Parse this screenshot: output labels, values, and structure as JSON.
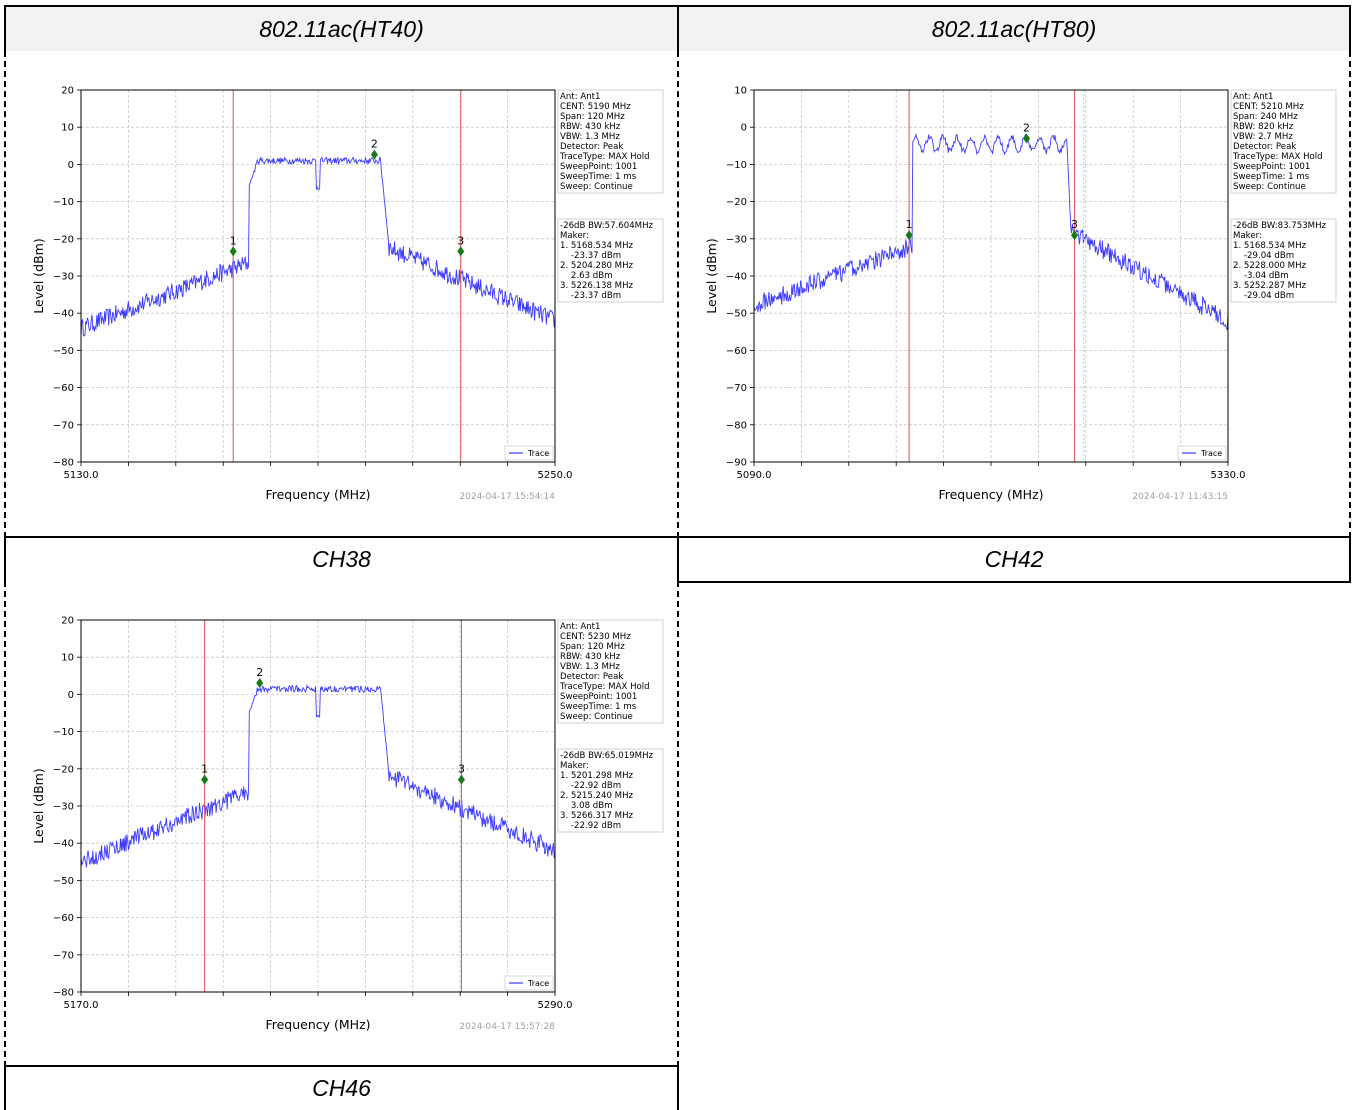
{
  "table": {
    "headers": [
      "802.11ac(HT40)",
      "802.11ac(HT80)"
    ],
    "captions": [
      "CH38",
      "CH42",
      "CH46"
    ]
  },
  "chart_data": [
    {
      "type": "line",
      "title": "",
      "xlabel": "Frequency (MHz)",
      "ylabel": "Level (dBm)",
      "xlim": [
        5130.0,
        5250.0
      ],
      "ylim": [
        -80,
        20
      ],
      "x_tick_labels": [
        "5130.0",
        "5250.0"
      ],
      "y_ticks": [
        20,
        10,
        0,
        -10,
        -20,
        -30,
        -40,
        -50,
        -60,
        -70,
        -80
      ],
      "grid": true,
      "legend": "bottom-right",
      "series": [
        {
          "name": "Trace",
          "color": "#3b3bff"
        }
      ],
      "vlines": [
        5168.534,
        5226.138
      ],
      "extra_vlines": [],
      "markers": [
        {
          "label": "1",
          "x": 5168.534,
          "y": -23.37
        },
        {
          "label": "2",
          "x": 5204.28,
          "y": 2.63
        },
        {
          "label": "3",
          "x": 5226.138,
          "y": -23.37
        }
      ],
      "shape": {
        "noise_left": -44,
        "noise_right": -42,
        "plateau": 1.0,
        "edge_low": 5172.5,
        "edge_high": 5208.0,
        "dip_x": 5190.0,
        "ripple": 0
      },
      "info_lines": [
        "Ant: Ant1",
        "CENT: 5190 MHz",
        "Span: 120 MHz",
        "RBW: 430 kHz",
        "VBW: 1.3 MHz",
        "Detector: Peak",
        "TraceType: MAX Hold",
        "SweepPoint: 1001",
        "SweepTime: 1 ms",
        "Sweep: Continue"
      ],
      "marker_lines": [
        "-26dB BW:57.604MHz",
        "Maker:",
        "1. 5168.534 MHz",
        "    -23.37 dBm",
        "2. 5204.280 MHz",
        "    2.63 dBm",
        "3. 5226.138 MHz",
        "    -23.37 dBm"
      ],
      "timestamp": "2024-04-17 15:54:14"
    },
    {
      "type": "line",
      "title": "",
      "xlabel": "Frequency (MHz)",
      "ylabel": "Level (dBm)",
      "xlim": [
        5090.0,
        5330.0
      ],
      "ylim": [
        -90,
        10
      ],
      "x_tick_labels": [
        "5090.0",
        "5330.0"
      ],
      "y_ticks": [
        10,
        0,
        -10,
        -20,
        -30,
        -40,
        -50,
        -60,
        -70,
        -80,
        -90
      ],
      "grid": true,
      "legend": "bottom-right",
      "series": [
        {
          "name": "Trace",
          "color": "#3b3bff"
        }
      ],
      "vlines": [
        5168.534,
        5252.287
      ],
      "extra_vlines": [
        5257.0
      ],
      "markers": [
        {
          "label": "1",
          "x": 5168.534,
          "y": -29.04
        },
        {
          "label": "2",
          "x": 5228.0,
          "y": -3.04
        },
        {
          "label": "3",
          "x": 5252.287,
          "y": -29.04
        }
      ],
      "shape": {
        "noise_left": -48,
        "noise_right": -52,
        "plateau": -4.5,
        "edge_low": 5170.0,
        "edge_high": 5250.5,
        "dip_x": 0,
        "ripple": 2.2
      },
      "info_lines": [
        "Ant: Ant1",
        "CENT: 5210 MHz",
        "Span: 240 MHz",
        "RBW: 820 kHz",
        "VBW: 2.7 MHz",
        "Detector: Peak",
        "TraceType: MAX Hold",
        "SweepPoint: 1001",
        "SweepTime: 1 ms",
        "Sweep: Continue"
      ],
      "marker_lines": [
        "-26dB BW:83.753MHz",
        "Maker:",
        "1. 5168.534 MHz",
        "    -29.04 dBm",
        "2. 5228.000 MHz",
        "    -3.04 dBm",
        "3. 5252.287 MHz",
        "    -29.04 dBm"
      ],
      "timestamp": "2024-04-17 11:43:15"
    },
    {
      "type": "line",
      "title": "",
      "xlabel": "Frequency (MHz)",
      "ylabel": "Level (dBm)",
      "xlim": [
        5170.0,
        5290.0
      ],
      "ylim": [
        -80,
        20
      ],
      "x_tick_labels": [
        "5170.0",
        "5290.0"
      ],
      "y_ticks": [
        20,
        10,
        0,
        -10,
        -20,
        -30,
        -40,
        -50,
        -60,
        -70,
        -80
      ],
      "grid": true,
      "legend": "bottom-right",
      "series": [
        {
          "name": "Trace",
          "color": "#3b3bff"
        }
      ],
      "vlines": [
        5201.298,
        5266.317
      ],
      "extra_vlines": [],
      "markers": [
        {
          "label": "1",
          "x": 5201.298,
          "y": -22.92
        },
        {
          "label": "2",
          "x": 5215.24,
          "y": 3.08
        },
        {
          "label": "3",
          "x": 5266.317,
          "y": -22.92
        }
      ],
      "shape": {
        "noise_left": -45,
        "noise_right": -42,
        "plateau": 1.5,
        "edge_low": 5212.5,
        "edge_high": 5248.0,
        "dip_x": 5230.0,
        "ripple": 0
      },
      "info_lines": [
        "Ant: Ant1",
        "CENT: 5230 MHz",
        "Span: 120 MHz",
        "RBW: 430 kHz",
        "VBW: 1.3 MHz",
        "Detector: Peak",
        "TraceType: MAX Hold",
        "SweepPoint: 1001",
        "SweepTime: 1 ms",
        "Sweep: Continue"
      ],
      "marker_lines": [
        "-26dB BW:65.019MHz",
        "Maker:",
        "1. 5201.298 MHz",
        "    -22.92 dBm",
        "2. 5215.240 MHz",
        "    3.08 dBm",
        "3. 5266.317 MHz",
        "    -22.92 dBm"
      ],
      "timestamp": "2024-04-17 15:57:28"
    }
  ]
}
